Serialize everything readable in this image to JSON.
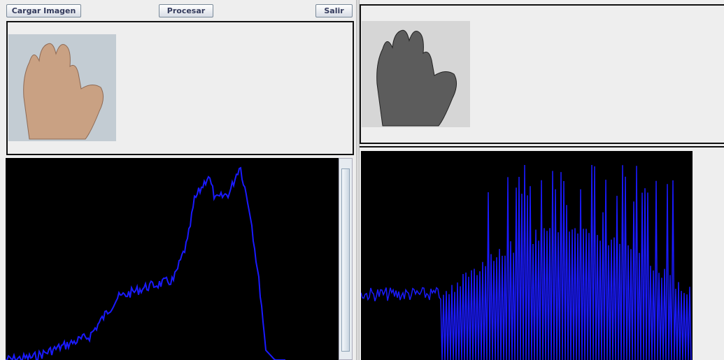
{
  "buttons": [
    "Cargar Imagen",
    "Procesar",
    "Salir"
  ]
}
